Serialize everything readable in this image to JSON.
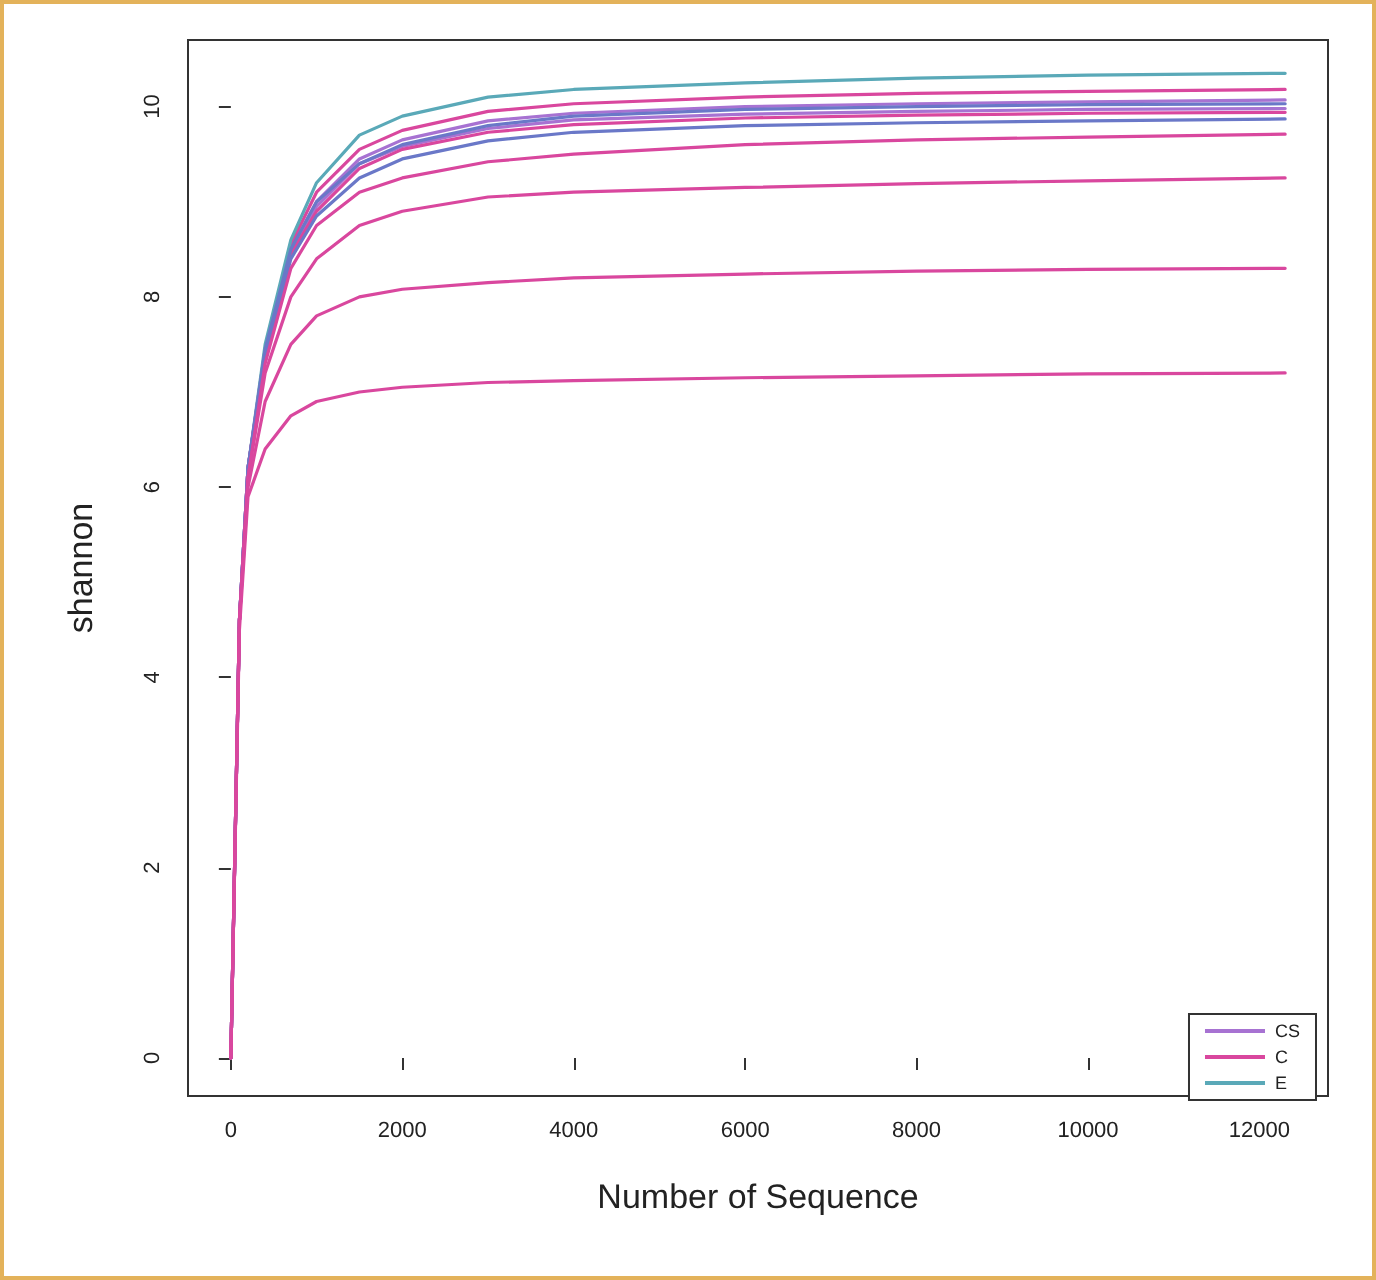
{
  "chart_data": {
    "type": "line",
    "xlabel": "Number of Sequence",
    "ylabel": "shannon",
    "x": [
      0,
      100,
      200,
      400,
      700,
      1000,
      1500,
      2000,
      3000,
      4000,
      6000,
      8000,
      10000,
      12300
    ],
    "xlim": [
      -500,
      12800
    ],
    "xticks": [
      0,
      2000,
      4000,
      6000,
      8000,
      10000,
      12000
    ],
    "ylim": [
      -0.4,
      10.7
    ],
    "yticks": [
      0,
      2,
      4,
      6,
      8,
      10
    ],
    "grid": false,
    "legend": "bottom right",
    "marker": "none",
    "series": [
      {
        "name": "CS",
        "color": "#a772d2",
        "values": [
          0,
          4.6,
          6.2,
          7.4,
          8.5,
          9.0,
          9.45,
          9.65,
          9.85,
          9.93,
          10.0,
          10.03,
          10.05,
          10.07
        ]
      },
      {
        "name": "C",
        "color": "#d9479e",
        "values": [
          0,
          4.6,
          6.2,
          7.45,
          8.55,
          9.1,
          9.55,
          9.75,
          9.95,
          10.03,
          10.1,
          10.14,
          10.16,
          10.18
        ]
      },
      {
        "name": "E",
        "color": "#5aa9b8",
        "values": [
          0,
          4.6,
          6.2,
          7.5,
          8.6,
          9.2,
          9.7,
          9.9,
          10.1,
          10.18,
          10.25,
          10.3,
          10.33,
          10.35
        ]
      },
      {
        "color": "#a772d2",
        "values": [
          0,
          4.6,
          6.2,
          7.4,
          8.45,
          8.95,
          9.4,
          9.58,
          9.77,
          9.86,
          9.92,
          9.95,
          9.97,
          9.98
        ]
      },
      {
        "color": "#d9479e",
        "values": [
          0,
          4.6,
          6.2,
          7.4,
          8.45,
          8.9,
          9.35,
          9.55,
          9.73,
          9.81,
          9.88,
          9.91,
          9.93,
          9.94
        ]
      },
      {
        "color": "#6a78c8",
        "values": [
          0,
          4.6,
          6.2,
          7.45,
          8.5,
          9.0,
          9.4,
          9.6,
          9.8,
          9.9,
          9.97,
          10.0,
          10.02,
          10.03
        ]
      },
      {
        "color": "#6a78c8",
        "values": [
          0,
          4.6,
          6.2,
          7.35,
          8.4,
          8.85,
          9.25,
          9.45,
          9.64,
          9.73,
          9.8,
          9.83,
          9.85,
          9.87
        ]
      },
      {
        "color": "#d9479e",
        "values": [
          0,
          4.6,
          6.1,
          7.3,
          8.3,
          8.75,
          9.1,
          9.25,
          9.42,
          9.5,
          9.6,
          9.65,
          9.68,
          9.71
        ]
      },
      {
        "color": "#d9479e",
        "values": [
          0,
          4.6,
          6.1,
          7.2,
          8.0,
          8.4,
          8.75,
          8.9,
          9.05,
          9.1,
          9.15,
          9.19,
          9.22,
          9.25
        ]
      },
      {
        "color": "#d9479e",
        "values": [
          0,
          4.6,
          6.0,
          6.9,
          7.5,
          7.8,
          8.0,
          8.08,
          8.15,
          8.2,
          8.24,
          8.27,
          8.29,
          8.3
        ]
      },
      {
        "color": "#d9479e",
        "values": [
          0,
          4.5,
          5.9,
          6.4,
          6.75,
          6.9,
          7.0,
          7.05,
          7.1,
          7.12,
          7.15,
          7.17,
          7.19,
          7.2
        ]
      }
    ]
  }
}
